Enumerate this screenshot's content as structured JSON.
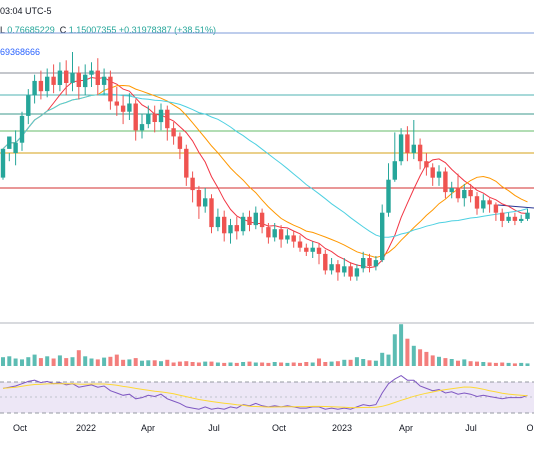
{
  "header": {
    "clock": "03:04 UTC-5",
    "ohlc_prefix": "L",
    "low_value": "0.76685229",
    "close_prefix": "C",
    "close_value": "1.15007355",
    "change": "+0.31978387 (+38.51%)",
    "ma_value": "69368666"
  },
  "colors": {
    "up": "#26a69a",
    "down": "#ef5350",
    "ma_fast": "#f23645",
    "ma_mid": "#ff9800",
    "ma_slow": "#4dd0e1",
    "rsi_line": "#7e57c2",
    "rsi_ma": "#fdd835",
    "rsi_band": "#ede7f6"
  },
  "x_axis_labels": [
    "Oct",
    "2022",
    "Apr",
    "Jul",
    "Oct",
    "2023",
    "Apr",
    "Jul",
    "O"
  ],
  "chart_data": {
    "type": "candlestick",
    "candles": [
      [
        0.72,
        0.86,
        0.86,
        0.71
      ],
      [
        0.86,
        0.92,
        0.84,
        0.8
      ],
      [
        0.84,
        0.89,
        0.95,
        0.78
      ],
      [
        0.89,
        1.02,
        1.04,
        0.85
      ],
      [
        1.02,
        1.12,
        1.15,
        0.98
      ],
      [
        1.12,
        1.19,
        1.22,
        1.08
      ],
      [
        1.19,
        1.14,
        1.24,
        1.1
      ],
      [
        1.14,
        1.21,
        1.25,
        1.11
      ],
      [
        1.21,
        1.17,
        1.27,
        1.13
      ],
      [
        1.17,
        1.24,
        1.28,
        1.14
      ],
      [
        1.24,
        1.18,
        1.29,
        1.12
      ],
      [
        1.18,
        1.23,
        1.33,
        1.14
      ],
      [
        1.23,
        1.16,
        1.26,
        1.1
      ],
      [
        1.16,
        1.22,
        1.27,
        1.12
      ],
      [
        1.22,
        1.24,
        1.28,
        1.16
      ],
      [
        1.24,
        1.17,
        1.3,
        1.12
      ],
      [
        1.17,
        1.21,
        1.25,
        1.12
      ],
      [
        1.21,
        1.09,
        1.24,
        1.05
      ],
      [
        1.09,
        1.07,
        1.16,
        1.02
      ],
      [
        1.07,
        1.04,
        1.12,
        0.98
      ],
      [
        1.04,
        1.08,
        1.13,
        1.0
      ],
      [
        1.08,
        0.95,
        1.1,
        0.9
      ],
      [
        0.95,
        0.98,
        1.03,
        0.91
      ],
      [
        0.98,
        1.03,
        1.07,
        0.96
      ],
      [
        1.03,
        0.99,
        1.07,
        0.94
      ],
      [
        0.99,
        1.05,
        1.08,
        0.95
      ],
      [
        1.05,
        0.96,
        1.07,
        0.9
      ],
      [
        0.96,
        0.92,
        0.99,
        0.88
      ],
      [
        0.92,
        0.86,
        0.94,
        0.81
      ],
      [
        0.86,
        0.72,
        0.88,
        0.68
      ],
      [
        0.72,
        0.66,
        0.75,
        0.6
      ],
      [
        0.66,
        0.58,
        0.68,
        0.52
      ],
      [
        0.58,
        0.62,
        0.67,
        0.55
      ],
      [
        0.62,
        0.48,
        0.64,
        0.45
      ],
      [
        0.48,
        0.53,
        0.57,
        0.46
      ],
      [
        0.53,
        0.45,
        0.56,
        0.41
      ],
      [
        0.45,
        0.49,
        0.52,
        0.4
      ],
      [
        0.49,
        0.46,
        0.53,
        0.42
      ],
      [
        0.46,
        0.53,
        0.55,
        0.44
      ],
      [
        0.53,
        0.49,
        0.56,
        0.46
      ],
      [
        0.49,
        0.55,
        0.58,
        0.47
      ],
      [
        0.55,
        0.48,
        0.57,
        0.45
      ],
      [
        0.48,
        0.43,
        0.5,
        0.4
      ],
      [
        0.43,
        0.47,
        0.5,
        0.41
      ],
      [
        0.47,
        0.42,
        0.49,
        0.38
      ],
      [
        0.42,
        0.44,
        0.47,
        0.4
      ],
      [
        0.44,
        0.41,
        0.46,
        0.38
      ],
      [
        0.41,
        0.38,
        0.44,
        0.36
      ],
      [
        0.38,
        0.36,
        0.4,
        0.34
      ],
      [
        0.36,
        0.38,
        0.41,
        0.33
      ],
      [
        0.38,
        0.35,
        0.4,
        0.3
      ],
      [
        0.35,
        0.27,
        0.37,
        0.25
      ],
      [
        0.27,
        0.3,
        0.33,
        0.25
      ],
      [
        0.3,
        0.26,
        0.32,
        0.22
      ],
      [
        0.26,
        0.29,
        0.33,
        0.24
      ],
      [
        0.29,
        0.24,
        0.31,
        0.22
      ],
      [
        0.24,
        0.28,
        0.3,
        0.22
      ],
      [
        0.28,
        0.33,
        0.36,
        0.26
      ],
      [
        0.33,
        0.29,
        0.35,
        0.26
      ],
      [
        0.29,
        0.32,
        0.34,
        0.27
      ],
      [
        0.32,
        0.55,
        0.59,
        0.31
      ],
      [
        0.55,
        0.71,
        0.79,
        0.53
      ],
      [
        0.71,
        0.8,
        0.94,
        0.7
      ],
      [
        0.8,
        0.93,
        0.96,
        0.78
      ],
      [
        0.93,
        0.84,
        0.97,
        0.8
      ],
      [
        0.84,
        0.88,
        1.0,
        0.81
      ],
      [
        0.88,
        0.8,
        0.91,
        0.76
      ],
      [
        0.8,
        0.77,
        0.84,
        0.73
      ],
      [
        0.77,
        0.72,
        0.79,
        0.68
      ],
      [
        0.72,
        0.75,
        0.78,
        0.68
      ],
      [
        0.75,
        0.65,
        0.77,
        0.62
      ],
      [
        0.65,
        0.67,
        0.7,
        0.62
      ],
      [
        0.67,
        0.62,
        0.74,
        0.6
      ],
      [
        0.62,
        0.66,
        0.69,
        0.58
      ],
      [
        0.66,
        0.63,
        0.69,
        0.6
      ],
      [
        0.63,
        0.57,
        0.65,
        0.54
      ],
      [
        0.57,
        0.61,
        0.64,
        0.55
      ],
      [
        0.61,
        0.59,
        0.62,
        0.55
      ],
      [
        0.59,
        0.55,
        0.6,
        0.51
      ],
      [
        0.55,
        0.51,
        0.57,
        0.48
      ],
      [
        0.51,
        0.53,
        0.55,
        0.5
      ],
      [
        0.53,
        0.51,
        0.55,
        0.49
      ],
      [
        0.51,
        0.52,
        0.54,
        0.5
      ],
      [
        0.52,
        0.55,
        0.57,
        0.51
      ]
    ],
    "volume": [
      0.2,
      0.22,
      0.17,
      0.15,
      0.2,
      0.26,
      0.18,
      0.22,
      0.17,
      0.24,
      0.18,
      0.2,
      0.36,
      0.22,
      0.17,
      0.15,
      0.19,
      0.21,
      0.26,
      0.14,
      0.15,
      0.18,
      0.12,
      0.13,
      0.13,
      0.11,
      0.14,
      0.08,
      0.1,
      0.11,
      0.09,
      0.08,
      0.1,
      0.1,
      0.08,
      0.07,
      0.08,
      0.07,
      0.09,
      0.1,
      0.08,
      0.08,
      0.07,
      0.09,
      0.08,
      0.07,
      0.08,
      0.07,
      0.09,
      0.08,
      0.17,
      0.09,
      0.1,
      0.11,
      0.14,
      0.14,
      0.2,
      0.16,
      0.13,
      0.12,
      0.3,
      0.26,
      0.72,
      0.95,
      0.62,
      0.46,
      0.38,
      0.32,
      0.24,
      0.21,
      0.18,
      0.16,
      0.12,
      0.15,
      0.11,
      0.1,
      0.09,
      0.08,
      0.07,
      0.08,
      0.07,
      0.06,
      0.07,
      0.06
    ],
    "rsi": [
      58,
      60,
      62,
      66,
      70,
      72,
      68,
      70,
      66,
      68,
      64,
      66,
      60,
      62,
      64,
      60,
      62,
      54,
      50,
      46,
      48,
      40,
      42,
      46,
      44,
      48,
      40,
      36,
      32,
      26,
      24,
      22,
      26,
      22,
      24,
      22,
      26,
      24,
      30,
      28,
      32,
      28,
      26,
      28,
      26,
      28,
      26,
      24,
      24,
      26,
      26,
      22,
      24,
      22,
      24,
      22,
      26,
      30,
      28,
      30,
      50,
      66,
      74,
      80,
      72,
      72,
      62,
      58,
      54,
      56,
      50,
      52,
      48,
      50,
      48,
      44,
      46,
      44,
      42,
      40,
      42,
      42,
      42,
      46
    ],
    "overlay_series": [
      "ma_fast",
      "ma_mid",
      "ma_slow"
    ]
  }
}
